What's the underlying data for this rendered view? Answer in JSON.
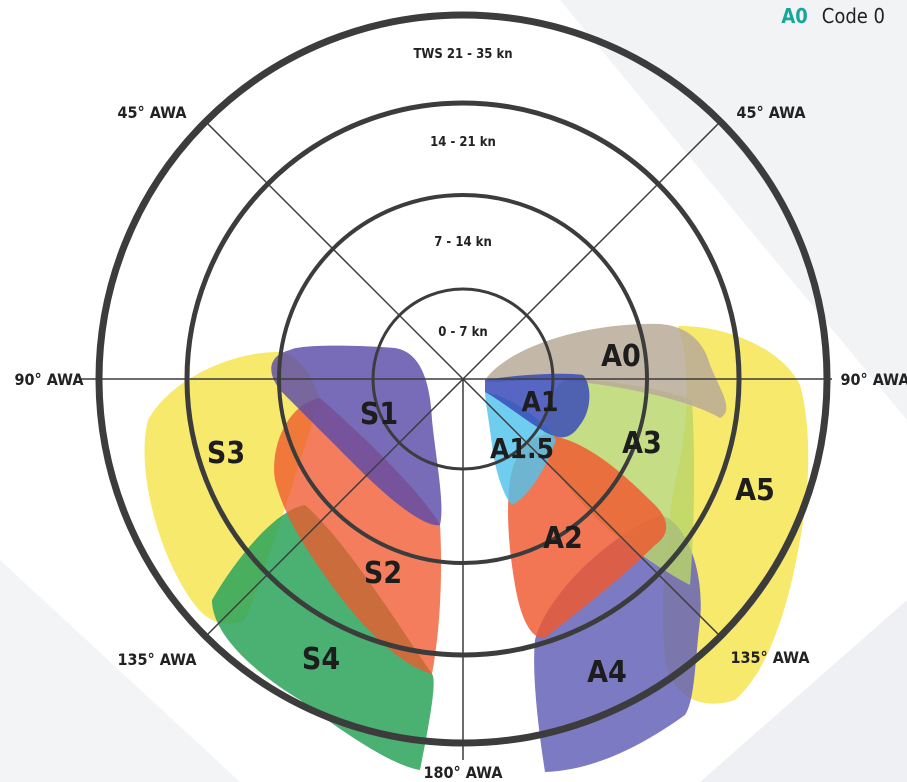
{
  "legend": {
    "code": "A0",
    "name": "Code 0"
  },
  "rings": [
    {
      "label": "0 - 7 kn"
    },
    {
      "label": "7 - 14 kn"
    },
    {
      "label": "14 - 21 kn"
    },
    {
      "label": "TWS 21 - 35  kn"
    }
  ],
  "awa_labels": {
    "tl": "45° AWA",
    "tr": "45° AWA",
    "l": "90° AWA",
    "r": "90° AWA",
    "bl": "135° AWA",
    "br": "135° AWA",
    "b": "180° AWA"
  },
  "sails": [
    {
      "id": "S3",
      "label": "S3",
      "color": "#f5e44a"
    },
    {
      "id": "S4",
      "label": "S4",
      "color": "#2aa35a"
    },
    {
      "id": "S2",
      "label": "S2",
      "color": "#f0582e"
    },
    {
      "id": "S1",
      "label": "S1",
      "color": "#5a4aa8"
    },
    {
      "id": "A5",
      "label": "A5",
      "color": "#f5e44a"
    },
    {
      "id": "A4",
      "label": "A4",
      "color": "#6563b8"
    },
    {
      "id": "A3",
      "label": "A3",
      "color": "#b8d66a"
    },
    {
      "id": "A2",
      "label": "A2",
      "color": "#f0582e"
    },
    {
      "id": "A0",
      "label": "A0",
      "color": "#b8aa98"
    },
    {
      "id": "A15",
      "label": "A1.5",
      "color": "#4fc3ec"
    },
    {
      "id": "A1",
      "label": "A1",
      "color": "#3a4bb8"
    }
  ]
}
